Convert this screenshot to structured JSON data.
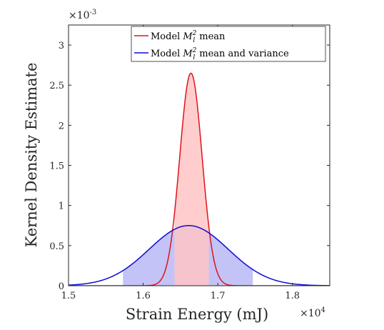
{
  "chart_data": {
    "type": "area",
    "xlabel": "Strain Energy (mJ)",
    "ylabel": "Kernel Density Estimate",
    "x_exponent_label": "×10",
    "x_exponent_power": "4",
    "y_exponent_label": "×10",
    "y_exponent_power": "-3",
    "xlim": [
      15000,
      18500
    ],
    "ylim": [
      0,
      0.00325
    ],
    "x_ticks": [
      15000,
      16000,
      17000,
      18000
    ],
    "x_tick_labels": [
      "1.5",
      "1.6",
      "1.7",
      "1.8"
    ],
    "y_ticks": [
      0,
      0.0005,
      0.001,
      0.0015,
      0.002,
      0.0025,
      0.003
    ],
    "y_tick_labels": [
      "0",
      "0.5",
      "1",
      "1.5",
      "2",
      "2.5",
      "3"
    ],
    "grid": false,
    "legend_position": "top-right",
    "series": [
      {
        "name": "Model M_l^2 mean",
        "legend_text": "Model",
        "legend_symbol": "M",
        "legend_sub": "l",
        "legend_sup": "2",
        "legend_suffix": "mean",
        "color": "#e0121b",
        "fill": "#ffc4c6",
        "peak_x": 16640,
        "peak_y": 0.00265,
        "std": 150,
        "shade_range": [
          16420,
          16880
        ]
      },
      {
        "name": "Model M_l^2 mean and variance",
        "legend_text": "Model",
        "legend_symbol": "M",
        "legend_sub": "l",
        "legend_sup": "2",
        "legend_suffix": "mean and variance",
        "color": "#0b0bd6",
        "fill": "#c3c3f7",
        "peak_x": 16610,
        "peak_y": 0.00075,
        "std": 530,
        "shade_range": [
          15730,
          17470
        ]
      }
    ]
  }
}
